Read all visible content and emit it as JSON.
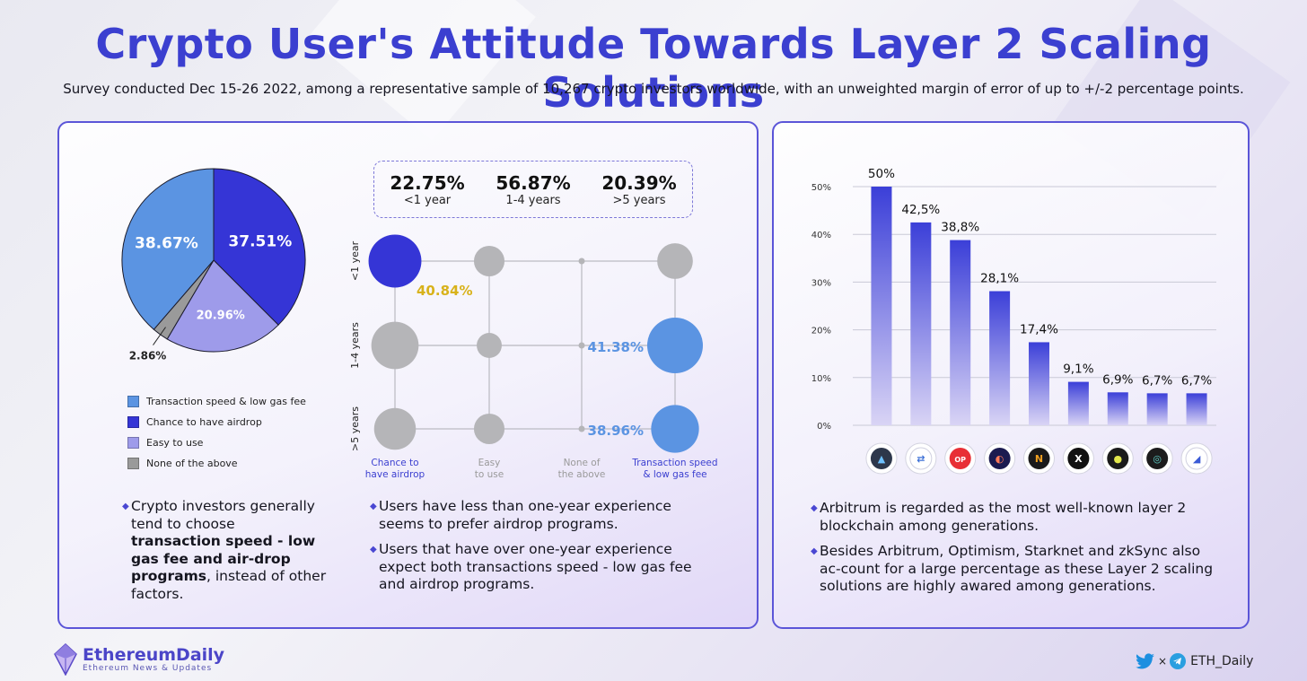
{
  "title": "Crypto User's Attitude Towards Layer 2 Scaling Solutions",
  "subtitle": "Survey conducted Dec 15-26 2022, among a representative sample of 10,267 crypto investors worldwide, with an unweighted margin of error of up to +/-2 percentage points.",
  "colors": {
    "accent": "#3b3fd0",
    "tx_speed": "#5b94e2",
    "airdrop": "#3535d6",
    "easy": "#9e9bea",
    "none": "#9a9a9a"
  },
  "chart_data": [
    {
      "type": "pie",
      "slices": [
        {
          "name": "Chance to have airdrop",
          "value": 37.51,
          "label": "37.51%",
          "color": "#3535d6"
        },
        {
          "name": "Easy to use",
          "value": 20.96,
          "label": "20.96%",
          "color": "#9e9bea"
        },
        {
          "name": "None of the above",
          "value": 2.86,
          "label": "2.86%",
          "color": "#9a9a9a"
        },
        {
          "name": "Transaction speed & low gas fee",
          "value": 38.67,
          "label": "38.67%",
          "color": "#5b94e2"
        }
      ],
      "legend": [
        {
          "label": "Transaction speed & low gas fee",
          "color": "#5b94e2"
        },
        {
          "label": "Chance to have airdrop",
          "color": "#3535d6"
        },
        {
          "label": "Easy to use",
          "color": "#9e9bea"
        },
        {
          "label": "None of the above",
          "color": "#9a9a9a"
        }
      ]
    },
    {
      "type": "bubble-matrix",
      "experience_stats": [
        {
          "value": "22.75%",
          "label": "<1 year"
        },
        {
          "value": "56.87%",
          "label": "1-4 years"
        },
        {
          "value": "20.39%",
          "label": ">5 years"
        }
      ],
      "rows": [
        "<1 year",
        "1-4 years",
        ">5 years"
      ],
      "columns": [
        "Chance to have airdrop",
        "Easy to use",
        "None of the above",
        "Transaction speed & low gas fee"
      ],
      "column_labels": [
        [
          "Chance to",
          "have airdrop"
        ],
        [
          "Easy",
          "to use"
        ],
        [
          "None of",
          "the above"
        ],
        [
          "Transaction speed",
          "& low gas fee"
        ]
      ],
      "highlights": [
        {
          "row": "<1 year",
          "column": "Chance to have airdrop",
          "label": "40.84%"
        },
        {
          "row": "1-4 years",
          "column": "Transaction speed & low gas fee",
          "label": "41.38%"
        },
        {
          "row": ">5 years",
          "column": "Transaction speed & low gas fee",
          "label": "38.96%"
        }
      ],
      "bubble_relative_size": [
        [
          0.95,
          0.55,
          0.08,
          0.64
        ],
        [
          0.85,
          0.45,
          0.08,
          1.0
        ],
        [
          0.75,
          0.55,
          0.08,
          0.86
        ]
      ]
    },
    {
      "type": "bar",
      "categories": [
        "Arbitrum",
        "Scroll",
        "Optimism",
        "Starknet",
        "Nahmii",
        "Immutable X",
        "Boba",
        "Loopring",
        "zkSync"
      ],
      "values": [
        50,
        42.5,
        38.8,
        28.1,
        17.4,
        9.1,
        6.9,
        6.7,
        6.7
      ],
      "value_labels": [
        "50%",
        "42,5%",
        "38,8%",
        "28,1%",
        "17,4%",
        "9,1%",
        "6,9%",
        "6,7%",
        "6,7%"
      ],
      "yticks": [
        "0%",
        "10%",
        "20%",
        "30%",
        "40%",
        "50%"
      ],
      "ylim": [
        0,
        50
      ],
      "grid": true
    }
  ],
  "notes": {
    "left_1": "Crypto investors generally tend to choose",
    "left_bold": "transaction speed - low gas fee and air-drop programs",
    "left_2": ", instead of other factors.",
    "mid_1": "Users have less than one-year experience seems to prefer airdrop programs.",
    "mid_2": "Users that have over one-year experience expect both transactions speed - low gas fee and airdrop programs.",
    "right_1": "Arbitrum is regarded as the most well-known layer 2 blockchain among generations.",
    "right_2": "Besides Arbitrum, Optimism, Starknet and zkSync also ac-count for a large percentage as these Layer 2 scaling solutions are highly awared among generations."
  },
  "footer": {
    "logo_title": "EthereumDaily",
    "logo_subtitle": "Ethereum News & Updates",
    "x_mark": "×",
    "handle": "ETH_Daily"
  }
}
